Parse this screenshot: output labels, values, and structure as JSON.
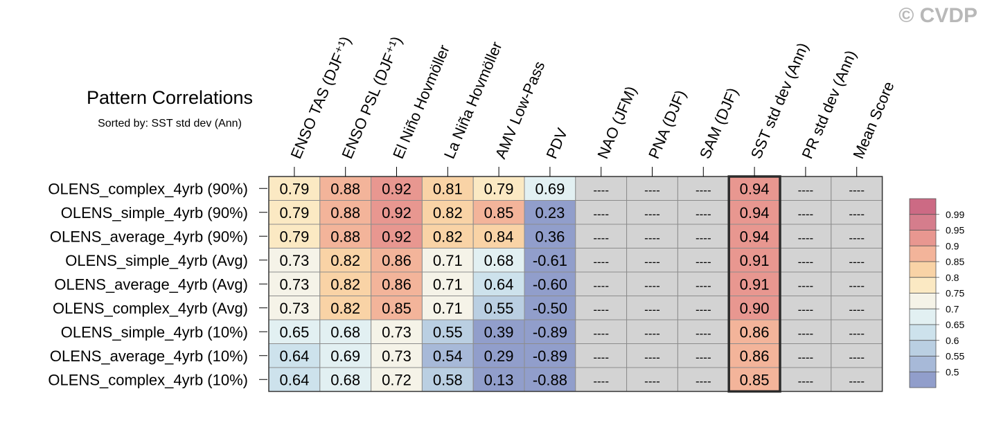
{
  "watermark": "© CVDP",
  "chart_data": {
    "type": "heatmap",
    "title": "Pattern Correlations",
    "subtitle": "Sorted by: SST std dev (Ann)",
    "columns": [
      "ENSO TAS (DJF⁺¹)",
      "ENSO PSL (DJF⁺¹)",
      "El Niño Hovmöller",
      "La Niña Hovmöller",
      "AMV Low-Pass",
      "PDV",
      "NAO (JFM)",
      "PNA (DJF)",
      "SAM (DJF)",
      "SST std dev (Ann)",
      "PR std dev (Ann)",
      "Mean Score"
    ],
    "highlighted_column": "SST std dev (Ann)",
    "missing_label": "----",
    "rows": [
      {
        "name": "OLENS_complex_4yrb (90%)",
        "values": [
          "0.79",
          "0.88",
          "0.92",
          "0.81",
          "0.79",
          "0.69",
          null,
          null,
          null,
          "0.94",
          null,
          null
        ]
      },
      {
        "name": "OLENS_simple_4yrb (90%)",
        "values": [
          "0.79",
          "0.88",
          "0.92",
          "0.82",
          "0.85",
          "0.23",
          null,
          null,
          null,
          "0.94",
          null,
          null
        ]
      },
      {
        "name": "OLENS_average_4yrb (90%)",
        "values": [
          "0.79",
          "0.88",
          "0.92",
          "0.82",
          "0.84",
          "0.36",
          null,
          null,
          null,
          "0.94",
          null,
          null
        ]
      },
      {
        "name": "OLENS_simple_4yrb (Avg)",
        "values": [
          "0.73",
          "0.82",
          "0.86",
          "0.71",
          "0.68",
          "-0.61",
          null,
          null,
          null,
          "0.91",
          null,
          null
        ]
      },
      {
        "name": "OLENS_average_4yrb (Avg)",
        "values": [
          "0.73",
          "0.82",
          "0.86",
          "0.71",
          "0.64",
          "-0.60",
          null,
          null,
          null,
          "0.91",
          null,
          null
        ]
      },
      {
        "name": "OLENS_complex_4yrb (Avg)",
        "values": [
          "0.73",
          "0.82",
          "0.85",
          "0.71",
          "0.55",
          "-0.50",
          null,
          null,
          null,
          "0.90",
          null,
          null
        ]
      },
      {
        "name": "OLENS_simple_4yrb (10%)",
        "values": [
          "0.65",
          "0.68",
          "0.73",
          "0.55",
          "0.39",
          "-0.89",
          null,
          null,
          null,
          "0.86",
          null,
          null
        ]
      },
      {
        "name": "OLENS_average_4yrb (10%)",
        "values": [
          "0.64",
          "0.69",
          "0.73",
          "0.54",
          "0.29",
          "-0.89",
          null,
          null,
          null,
          "0.86",
          null,
          null
        ]
      },
      {
        "name": "OLENS_complex_4yrb (10%)",
        "values": [
          "0.64",
          "0.68",
          "0.72",
          "0.58",
          "0.13",
          "-0.88",
          null,
          null,
          null,
          "0.85",
          null,
          null
        ]
      }
    ],
    "missing_color": "#d3d3d3",
    "colorbar": {
      "labels": [
        "0.99",
        "0.95",
        "0.9",
        "0.85",
        "0.8",
        "0.75",
        "0.7",
        "0.65",
        "0.6",
        "0.55",
        "0.5"
      ],
      "thresholds": [
        0.5,
        0.55,
        0.6,
        0.65,
        0.7,
        0.75,
        0.8,
        0.85,
        0.9,
        0.95,
        0.99
      ],
      "colors": [
        "#919ecb",
        "#a7b9d8",
        "#bacfe2",
        "#cde2ec",
        "#e2f0f2",
        "#f5f3e8",
        "#fbe9c3",
        "#f9d3a6",
        "#f3b49a",
        "#e89790",
        "#d57d8c",
        "#cc6a84"
      ]
    }
  }
}
